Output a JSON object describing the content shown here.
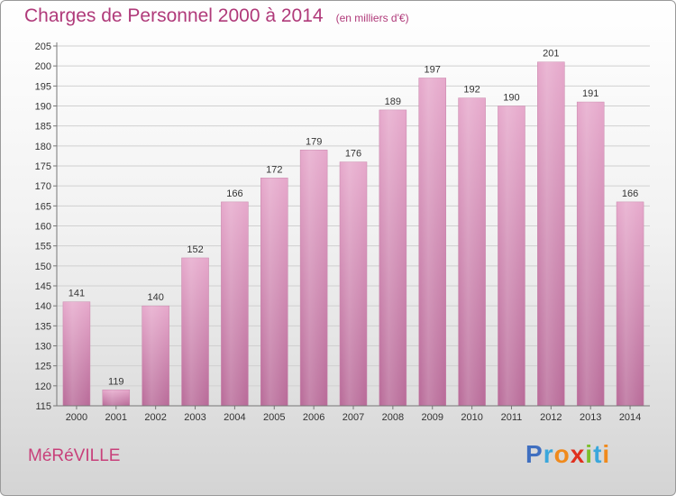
{
  "header": {
    "title": "Charges de Personnel 2000 à 2014",
    "subtitle": "(en milliers d'€)"
  },
  "footer": {
    "commune": "MéRéVILLE",
    "logo_letters": [
      {
        "char": "P",
        "color": "#3f6fc0"
      },
      {
        "char": "r",
        "color": "#3aa7dc"
      },
      {
        "char": "o",
        "color": "#f08a1c"
      },
      {
        "char": "x",
        "color": "#e0301e"
      },
      {
        "char": "i",
        "color": "#7cbf2a"
      },
      {
        "char": "t",
        "color": "#3aa7dc"
      },
      {
        "char": "i",
        "color": "#f08a1c"
      }
    ]
  },
  "chart_data": {
    "type": "bar",
    "title": "Charges de Personnel 2000 à 2014",
    "subtitle": "(en milliers d'€)",
    "categories": [
      "2000",
      "2001",
      "2002",
      "2003",
      "2004",
      "2005",
      "2006",
      "2007",
      "2008",
      "2009",
      "2010",
      "2011",
      "2012",
      "2013",
      "2014"
    ],
    "values": [
      141,
      119,
      140,
      152,
      166,
      172,
      179,
      176,
      189,
      197,
      192,
      190,
      201,
      191,
      166
    ],
    "ylim": [
      115,
      205
    ],
    "yticks": [
      115,
      120,
      125,
      130,
      135,
      140,
      145,
      150,
      155,
      160,
      165,
      170,
      175,
      180,
      185,
      190,
      195,
      200,
      205
    ],
    "grid": true,
    "bar_color": "#d98cb6"
  }
}
